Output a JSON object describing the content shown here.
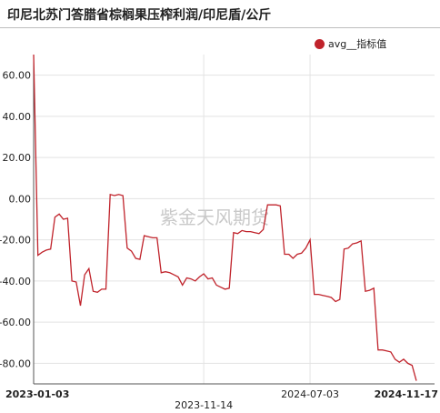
{
  "title": "印尼北苏门答腊省棕榈果压榨利润/印尼盾/公斤",
  "watermark": "紫金天风期货",
  "colors": {
    "line": "#c0232b",
    "grid": "#e3e3e3",
    "axis": "#555555"
  },
  "chart_data": {
    "type": "line",
    "ylim": [
      -90,
      70
    ],
    "y_ticks": [
      60,
      40,
      20,
      0,
      -20,
      -40,
      -60,
      -80
    ],
    "y_tick_labels": [
      "60.00",
      "40.00",
      "20.00",
      "0.00",
      "-20.00",
      "-40.00",
      "-60.00",
      "-80.00"
    ],
    "x_ticks": [
      {
        "index": 0,
        "label": "2023-01-03",
        "bold": true
      },
      {
        "index": 40,
        "label": "2023-11-14",
        "bold": false
      },
      {
        "index": 65,
        "label": "2024-07-03",
        "bold": false
      },
      {
        "index": 82,
        "label": "2024-11-17",
        "bold": true
      }
    ],
    "gridline_indices": [
      0,
      40,
      65
    ],
    "series": [
      {
        "name": "avg__指标值",
        "values": [
          70,
          -27.5,
          -26,
          -25,
          -24.5,
          -9,
          -7.5,
          -10,
          -9.5,
          -40,
          -40.5,
          -52,
          -37,
          -34,
          -45,
          -45.5,
          -44,
          -44,
          2,
          1.5,
          2,
          1.5,
          -24,
          -25.5,
          -29,
          -29.5,
          -18,
          -18.5,
          -19,
          -19,
          -36,
          -35.5,
          -36,
          -37,
          -38,
          -42,
          -38.5,
          -39,
          -40,
          -38,
          -36.5,
          -39,
          -38.5,
          -42,
          -43,
          -44,
          -43.5,
          -16.5,
          -17,
          -15.5,
          -16,
          -16,
          -16.5,
          -17,
          -15,
          -3,
          -3,
          -3,
          -3.5,
          -27,
          -27,
          -29,
          -27,
          -26.5,
          -24,
          -20,
          -46.5,
          -46.5,
          -47,
          -47.5,
          -48,
          -50,
          -49,
          -24.5,
          -24,
          -22,
          -21.5,
          -20.5,
          -45,
          -44.5,
          -43.5,
          -73.5,
          -73.5,
          -74,
          -74.5,
          -78,
          -79.5,
          -78,
          -80,
          -81,
          -88.5
        ]
      }
    ]
  }
}
